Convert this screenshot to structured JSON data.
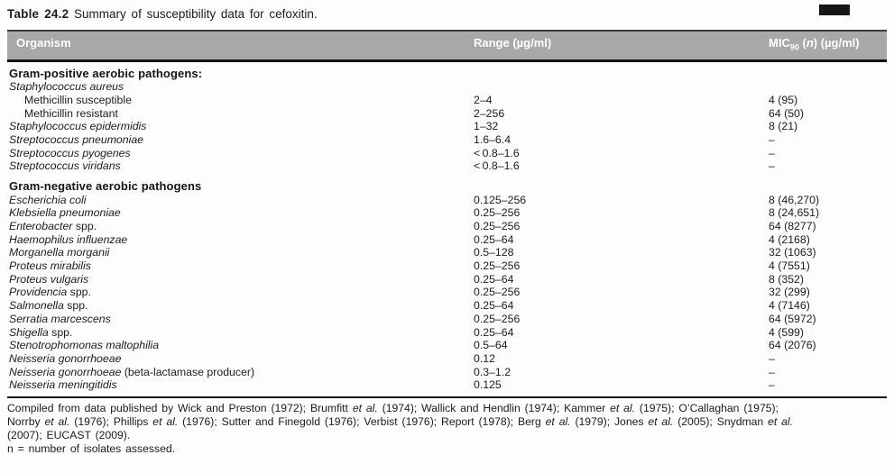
{
  "page": {
    "title_bold": "Table 24.2",
    "title_rest": " Summary of susceptibility data for cefoxitin."
  },
  "table": {
    "columns": {
      "organism": "Organism",
      "range": "Range (µg/ml)",
      "mic_prefix": "MIC",
      "mic_sub": "90",
      "mic_mid": " (",
      "mic_n": "n",
      "mic_suffix": ") (µg/ml)"
    },
    "sections": [
      {
        "header": "Gram-positive aerobic pathogens:",
        "rows": [
          {
            "italic": "Staphylococcus aureus",
            "roman": "",
            "indent": false,
            "range": "",
            "mic": ""
          },
          {
            "italic": "",
            "roman": "Methicillin susceptible",
            "indent": true,
            "range": "2–4",
            "mic": "4 (95)"
          },
          {
            "italic": "",
            "roman": "Methicillin resistant",
            "indent": true,
            "range": "2–256",
            "mic": "64 (50)"
          },
          {
            "italic": "Staphylococcus epidermidis",
            "roman": "",
            "indent": false,
            "range": "1–32",
            "mic": "8 (21)"
          },
          {
            "italic": "Streptococcus pneumoniae",
            "roman": "",
            "indent": false,
            "range": "1.6–6.4",
            "mic": "–"
          },
          {
            "italic": "Streptococcus pyogenes",
            "roman": "",
            "indent": false,
            "range": "< 0.8–1.6",
            "mic": "–"
          },
          {
            "italic": "Streptococcus viridans",
            "roman": "",
            "indent": false,
            "range": "< 0.8–1.6",
            "mic": "–"
          }
        ]
      },
      {
        "header": "Gram-negative aerobic pathogens",
        "rows": [
          {
            "italic": "Escherichia coli",
            "roman": "",
            "indent": false,
            "range": "0.125–256",
            "mic": "8 (46,270)"
          },
          {
            "italic": "Klebsiella pneumoniae",
            "roman": "",
            "indent": false,
            "range": "0.25–256",
            "mic": "8 (24,651)"
          },
          {
            "italic": "Enterobacter",
            "roman": " spp.",
            "indent": false,
            "range": "0.25–256",
            "mic": "64 (8277)"
          },
          {
            "italic": "Haemophilus influenzae",
            "roman": "",
            "indent": false,
            "range": "0.25–64",
            "mic": "4 (2168)"
          },
          {
            "italic": "Morganella morganii",
            "roman": "",
            "indent": false,
            "range": "0.5–128",
            "mic": "32 (1063)"
          },
          {
            "italic": "Proteus mirabilis",
            "roman": "",
            "indent": false,
            "range": "0.25–256",
            "mic": "4 (7551)"
          },
          {
            "italic": "Proteus vulgaris",
            "roman": "",
            "indent": false,
            "range": "0.25–64",
            "mic": "8 (352)"
          },
          {
            "italic": "Providencia",
            "roman": " spp.",
            "indent": false,
            "range": "0.25–256",
            "mic": "32 (299)"
          },
          {
            "italic": "Salmonella",
            "roman": " spp.",
            "indent": false,
            "range": "0.25–64",
            "mic": "4 (7146)"
          },
          {
            "italic": "Serratia marcescens",
            "roman": "",
            "indent": false,
            "range": "0.25–256",
            "mic": "64 (5972)"
          },
          {
            "italic": "Shigella",
            "roman": " spp.",
            "indent": false,
            "range": "0.25–64",
            "mic": "4 (599)"
          },
          {
            "italic": "Stenotrophomonas maltophilia",
            "roman": "",
            "indent": false,
            "range": "0.5–64",
            "mic": "64 (2076)"
          },
          {
            "italic": "Neisseria gonorrhoeae",
            "roman": "",
            "indent": false,
            "range": "0.12",
            "mic": "–"
          },
          {
            "italic": "Neisseria gonorrhoeae",
            "roman": " (beta-lactamase producer)",
            "indent": false,
            "range": "0.3–1.2",
            "mic": "–"
          },
          {
            "italic": "Neisseria meningitidis",
            "roman": "",
            "indent": false,
            "range": "0.125",
            "mic": "–"
          }
        ]
      }
    ]
  },
  "footnote": {
    "lines": [
      "Compiled from data published by Wick and Preston (1972); Brumfitt et al. (1974); Wallick and Hendlin (1974); Kammer et al. (1975); O’Callaghan (1975);",
      "Norrby et al. (1976); Phillips et al. (1976); Sutter and Finegold (1976); Verbist (1976); Report (1978); Berg et al. (1979); Jones et al. (2005); Snydman et al.",
      "(2007); EUCAST (2009).",
      "n = number of isolates assessed."
    ]
  },
  "colors": {
    "header_bg": "#a6a8aa",
    "header_text": "#ffffff",
    "text": "#1c1c1c",
    "rule": "#141414"
  }
}
